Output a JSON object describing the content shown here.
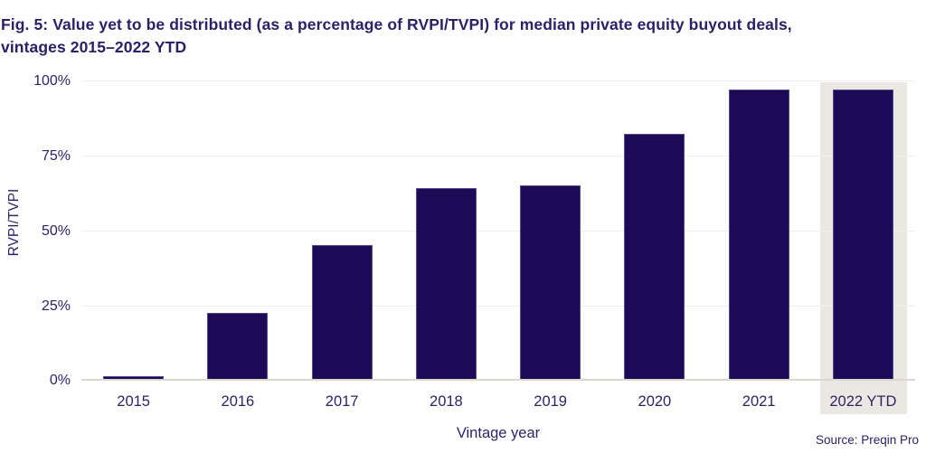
{
  "figure": {
    "title_line1": "Fig. 5: Value yet to be distributed (as a percentage of RVPI/TVPI) for median private equity buyout deals,",
    "title_line2": "vintages 2015–2022 YTD",
    "source": "Source: Preqin Pro"
  },
  "chart_data": {
    "type": "bar",
    "title": "Fig. 5: Value yet to be distributed (as a percentage of RVPI/TVPI) for median private equity buyout deals, vintages 2015–2022 YTD",
    "categories": [
      "2015",
      "2016",
      "2017",
      "2018",
      "2019",
      "2020",
      "2021",
      "2022 YTD"
    ],
    "values": [
      1,
      22,
      45,
      64,
      65,
      82,
      97,
      97
    ],
    "xlabel": "Vintage year",
    "ylabel": "RVPI/TVPI",
    "ylim": [
      0,
      100
    ],
    "yticks": [
      "0%",
      "25%",
      "50%",
      "75%",
      "100%"
    ],
    "grid": true,
    "legend_position": "none",
    "highlighted_category": "2022 YTD",
    "colors": {
      "bar": "#1c0a56",
      "highlight_band": "#ebe8e3",
      "text": "#2d2367",
      "gridline": "#f1efec",
      "axis_line": "#dad7d1"
    }
  }
}
